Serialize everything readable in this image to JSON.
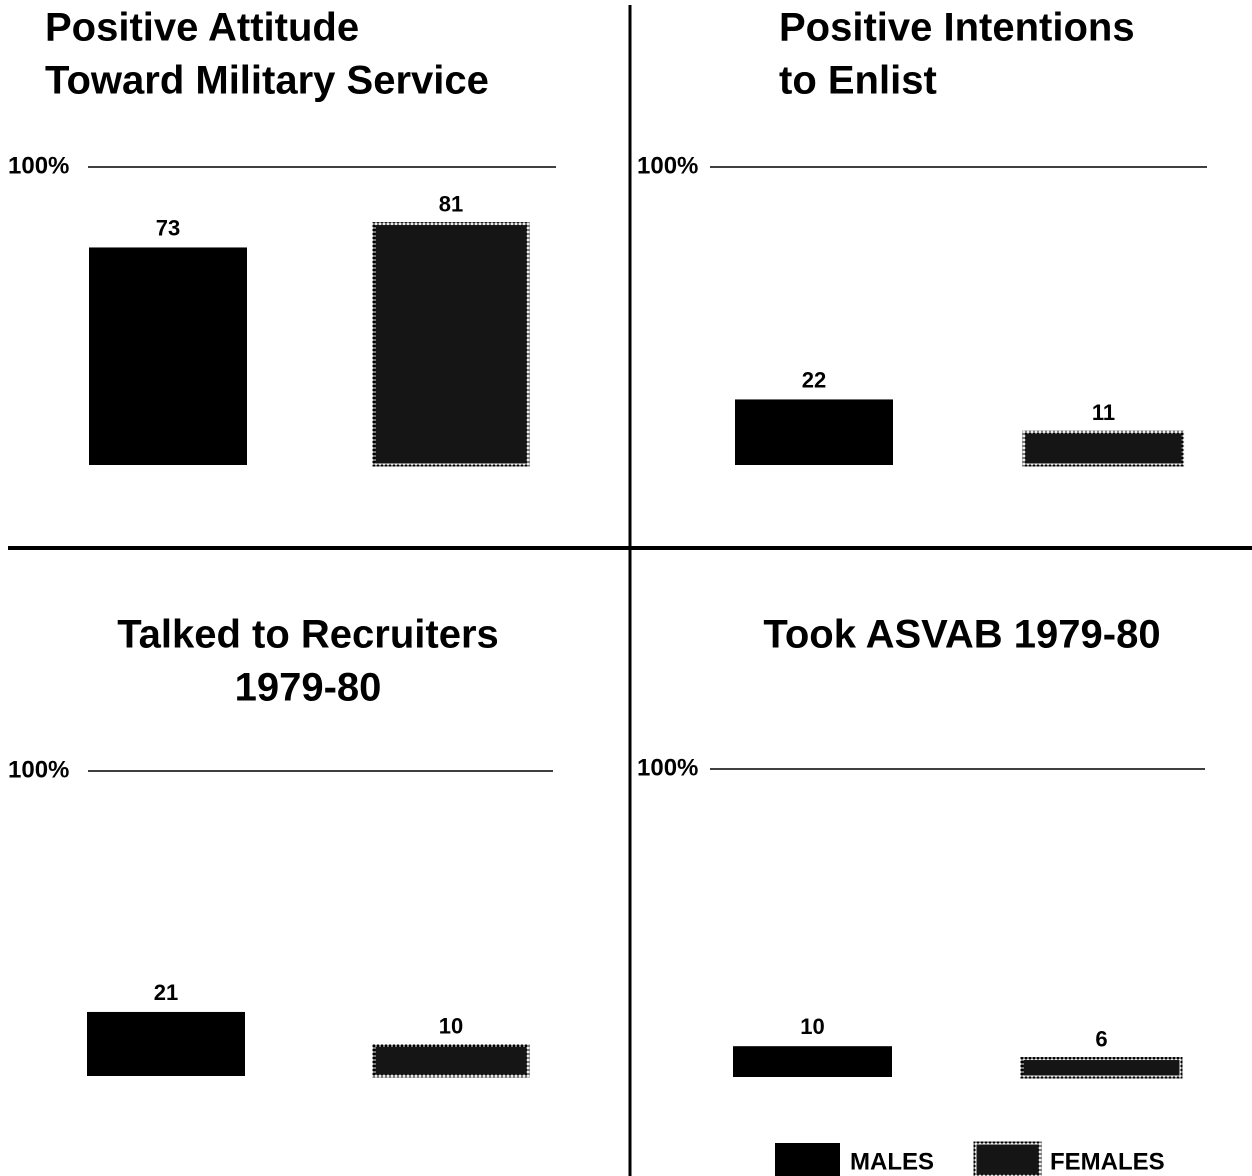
{
  "chart_data": [
    {
      "type": "bar",
      "title": [
        "Positive Attitude",
        "Toward Military Service"
      ],
      "values": [
        73,
        81
      ],
      "ylim": [
        0,
        100
      ],
      "yticks": [
        {
          "value": 100,
          "label": "100%"
        }
      ]
    },
    {
      "type": "bar",
      "title": [
        "Positive Intentions",
        "to Enlist"
      ],
      "values": [
        22,
        11
      ],
      "ylim": [
        0,
        100
      ],
      "yticks": [
        {
          "value": 100,
          "label": "100%"
        }
      ]
    },
    {
      "type": "bar",
      "title": [
        "Talked to Recruiters",
        "1979-80"
      ],
      "values": [
        21,
        10
      ],
      "ylim": [
        0,
        100
      ],
      "yticks": [
        {
          "value": 100,
          "label": "100%"
        }
      ]
    },
    {
      "type": "bar",
      "title": [
        "Took ASVAB 1979-80"
      ],
      "values": [
        10,
        6
      ],
      "ylim": [
        0,
        100
      ],
      "yticks": [
        {
          "value": 100,
          "label": "100%"
        }
      ]
    }
  ],
  "legend": [
    {
      "name": "MALES",
      "color": "#000000"
    },
    {
      "name": "FEMALES",
      "color": "#151515"
    }
  ]
}
